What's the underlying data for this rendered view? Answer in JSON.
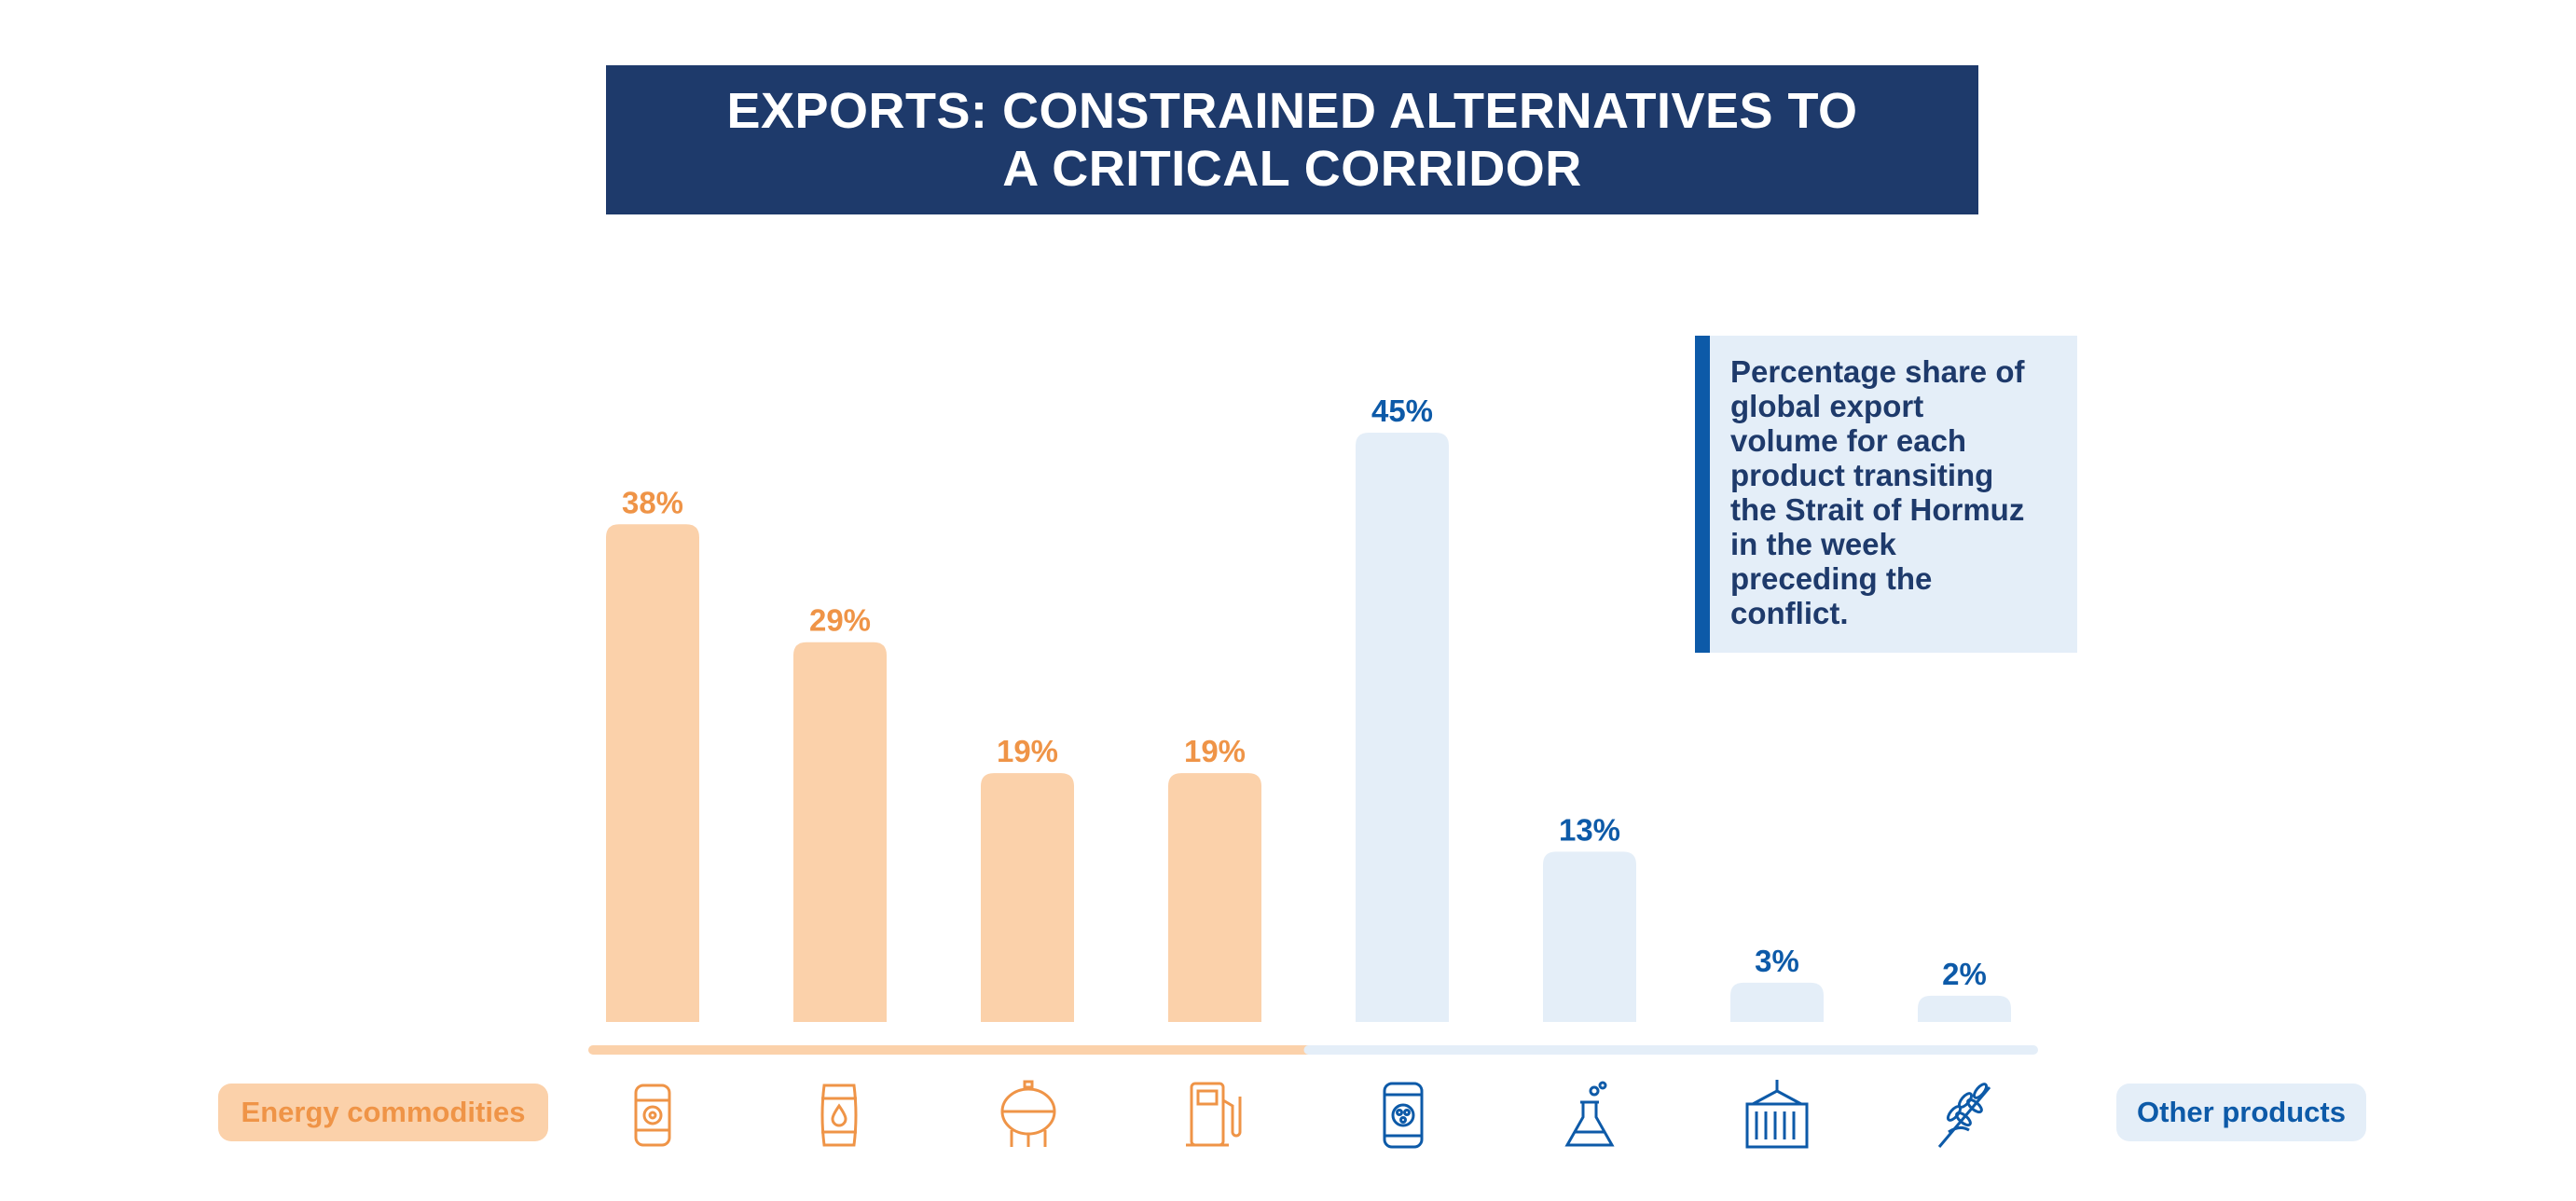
{
  "title": {
    "line1": "EXPORTS: CONSTRAINED ALTERNATIVES TO",
    "line2": "A CRITICAL CORRIDOR"
  },
  "note": {
    "lines": [
      "Percentage share of",
      "global export",
      "volume for each",
      "product transiting",
      "the Strait of Hormuz",
      "in the week",
      "preceding the",
      "conflict."
    ]
  },
  "legend": {
    "energy_label": "Energy commodities",
    "other_label": "Other products"
  },
  "colors": {
    "title_bg": "#1e3a6b",
    "energy_bar": "#fbd1aa",
    "energy_text": "#ef9447",
    "other_bar": "#e4eef8",
    "other_text": "#0d5aa8"
  },
  "chart_data": {
    "type": "bar",
    "title": "EXPORTS: CONSTRAINED ALTERNATIVES TO A CRITICAL CORRIDOR",
    "xlabel": "",
    "ylabel": "",
    "ylim": [
      0,
      45
    ],
    "unit": "%",
    "categories": [
      {
        "icon": "oil-barrel-icon",
        "group": "energy"
      },
      {
        "icon": "barrel-drop-icon",
        "group": "energy"
      },
      {
        "icon": "gas-tank-icon",
        "group": "energy"
      },
      {
        "icon": "fuel-pump-icon",
        "group": "energy"
      },
      {
        "icon": "fertilizer-bag-icon",
        "group": "other"
      },
      {
        "icon": "flask-icon",
        "group": "other"
      },
      {
        "icon": "shipping-container-icon",
        "group": "other"
      },
      {
        "icon": "wheat-icon",
        "group": "other"
      }
    ],
    "values": [
      38,
      29,
      19,
      19,
      45,
      13,
      3,
      2
    ],
    "labels": [
      "38%",
      "29%",
      "19%",
      "19%",
      "45%",
      "13%",
      "3%",
      "2%"
    ],
    "groups": [
      {
        "name": "Energy commodities",
        "count": 4
      },
      {
        "name": "Other products",
        "count": 4
      }
    ]
  }
}
